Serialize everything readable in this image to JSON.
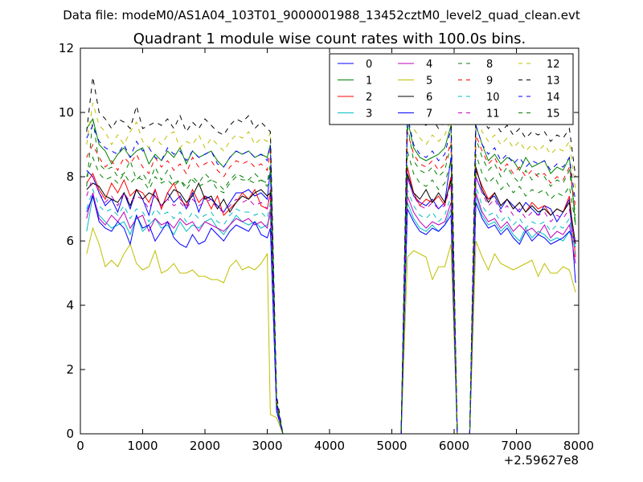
{
  "header": {
    "suptitle": "Data file: modeM0/AS1A04_103T01_9000001988_13452cztM0_level2_quad_clean.evt"
  },
  "chart_data": {
    "type": "line",
    "title": "Quadrant 1 module wise count rates with 100.0s bins.",
    "xlabel": "",
    "ylabel": "",
    "xlim": [
      0,
      8000
    ],
    "ylim": [
      0,
      12
    ],
    "x_offset_label": "+2.59627e8",
    "xticks": [
      "0",
      "1000",
      "2000",
      "3000",
      "4000",
      "5000",
      "6000",
      "7000",
      "8000"
    ],
    "yticks": [
      "0",
      "2",
      "4",
      "6",
      "8",
      "10",
      "12"
    ],
    "grid": false,
    "legend_position": "top-right",
    "x": [
      100,
      200,
      300,
      400,
      500,
      600,
      700,
      800,
      900,
      1000,
      1100,
      1200,
      1300,
      1400,
      1500,
      1600,
      1700,
      1800,
      1900,
      2000,
      2100,
      2200,
      2300,
      2400,
      2500,
      2600,
      2700,
      2800,
      2900,
      3000,
      3050,
      3150,
      3250,
      3350,
      4000,
      5000,
      5150,
      5250,
      5350,
      5450,
      5550,
      5650,
      5750,
      5850,
      5950,
      6050,
      6150,
      6250,
      6350,
      6450,
      6550,
      6650,
      6750,
      6850,
      6950,
      7050,
      7150,
      7250,
      7350,
      7450,
      7550,
      7650,
      7750,
      7850,
      7950
    ],
    "series": [
      {
        "name": "0",
        "color": "#0000ff",
        "dash": "solid",
        "values": [
          8.2,
          8.0,
          7.5,
          7.1,
          7.3,
          6.9,
          7.5,
          7.0,
          7.6,
          7.3,
          6.8,
          7.6,
          7.0,
          7.5,
          7.2,
          7.4,
          7.0,
          7.5,
          6.9,
          7.4,
          7.3,
          7.1,
          6.9,
          7.2,
          7.5,
          7.5,
          7.6,
          7.4,
          7.5,
          7.3,
          8.2,
          0.9,
          0.0,
          0.0,
          0.0,
          0.0,
          0.0,
          8.0,
          7.4,
          7.2,
          7.1,
          7.3,
          7.0,
          7.2,
          8.6,
          0.0,
          0.0,
          0.0,
          8.0,
          7.5,
          7.3,
          7.4,
          7.0,
          7.3,
          7.1,
          6.9,
          7.2,
          7.0,
          6.8,
          7.1,
          7.0,
          6.6,
          6.9,
          7.3,
          4.7
        ]
      },
      {
        "name": "1",
        "color": "#008000",
        "dash": "solid",
        "values": [
          9.5,
          9.8,
          9.0,
          8.8,
          8.4,
          8.7,
          8.9,
          8.6,
          8.8,
          8.9,
          8.4,
          8.7,
          8.5,
          8.8,
          8.6,
          8.9,
          8.4,
          8.8,
          8.6,
          8.7,
          8.8,
          8.5,
          8.3,
          8.6,
          8.8,
          8.7,
          8.8,
          8.6,
          8.7,
          8.6,
          9.0,
          1.0,
          0.0,
          0.0,
          0.0,
          0.0,
          0.0,
          9.8,
          8.9,
          8.6,
          8.5,
          8.6,
          8.7,
          8.9,
          9.6,
          0.0,
          0.0,
          0.0,
          9.6,
          9.0,
          8.5,
          8.7,
          8.4,
          8.6,
          8.5,
          8.2,
          8.6,
          8.3,
          8.4,
          8.5,
          8.1,
          8.3,
          8.2,
          8.6,
          6.5
        ]
      },
      {
        "name": "2",
        "color": "#ff0000",
        "dash": "solid",
        "values": [
          7.8,
          8.1,
          7.6,
          7.3,
          7.8,
          7.5,
          7.9,
          7.4,
          7.6,
          7.5,
          7.2,
          7.6,
          7.0,
          7.5,
          7.8,
          7.3,
          7.1,
          7.6,
          7.2,
          7.4,
          7.0,
          7.4,
          6.8,
          7.0,
          7.2,
          7.5,
          7.3,
          7.6,
          7.1,
          7.0,
          7.5,
          0.9,
          0.0,
          0.0,
          0.0,
          0.0,
          0.0,
          8.3,
          7.5,
          7.1,
          7.3,
          7.2,
          7.4,
          7.1,
          8.0,
          0.0,
          0.0,
          0.0,
          8.2,
          7.7,
          7.3,
          7.5,
          7.1,
          7.3,
          7.0,
          7.2,
          6.9,
          7.2,
          7.0,
          7.1,
          6.8,
          7.0,
          6.9,
          7.4,
          5.5
        ]
      },
      {
        "name": "3",
        "color": "#00bfbf",
        "dash": "solid",
        "values": [
          6.3,
          7.4,
          6.8,
          6.6,
          6.4,
          6.5,
          6.6,
          6.2,
          6.8,
          6.3,
          6.5,
          6.7,
          6.4,
          6.5,
          6.2,
          6.6,
          6.3,
          6.5,
          6.4,
          6.6,
          6.7,
          6.4,
          6.2,
          6.5,
          6.8,
          6.6,
          6.5,
          6.6,
          6.4,
          6.5,
          6.8,
          0.8,
          0.0,
          0.0,
          0.0,
          0.0,
          0.0,
          7.2,
          6.7,
          6.4,
          6.3,
          6.5,
          6.3,
          6.5,
          7.0,
          0.0,
          0.0,
          0.0,
          7.4,
          6.8,
          6.5,
          6.6,
          6.3,
          6.5,
          6.2,
          6.0,
          6.4,
          6.1,
          6.3,
          6.2,
          6.0,
          6.1,
          6.0,
          6.3,
          5.8
        ]
      },
      {
        "name": "4",
        "color": "#bf00bf",
        "dash": "solid",
        "values": [
          6.7,
          7.5,
          6.7,
          6.5,
          6.8,
          6.6,
          6.9,
          6.4,
          6.7,
          6.8,
          6.3,
          6.7,
          6.5,
          6.6,
          6.4,
          6.7,
          6.5,
          6.6,
          6.3,
          6.6,
          6.5,
          6.4,
          6.3,
          6.5,
          6.7,
          6.6,
          6.7,
          6.5,
          6.6,
          6.4,
          7.0,
          0.8,
          0.0,
          0.0,
          0.0,
          0.0,
          0.0,
          7.4,
          6.9,
          6.6,
          6.4,
          6.6,
          6.5,
          6.6,
          7.2,
          0.0,
          0.0,
          0.0,
          7.5,
          6.9,
          6.6,
          6.7,
          6.4,
          6.6,
          6.3,
          6.5,
          6.3,
          6.4,
          6.2,
          6.5,
          6.1,
          6.3,
          6.2,
          6.5,
          5.3
        ]
      },
      {
        "name": "5",
        "color": "#bfbf00",
        "dash": "solid",
        "values": [
          5.6,
          6.4,
          5.9,
          5.2,
          5.4,
          5.2,
          5.6,
          5.9,
          5.3,
          5.1,
          5.2,
          5.7,
          5.0,
          5.1,
          5.3,
          5.0,
          5.0,
          5.1,
          4.9,
          4.9,
          4.8,
          4.8,
          4.7,
          5.2,
          5.4,
          5.1,
          5.2,
          5.1,
          5.3,
          5.6,
          0.6,
          0.5,
          0.0,
          0.0,
          0.0,
          0.0,
          0.0,
          5.5,
          5.7,
          5.6,
          5.5,
          4.8,
          5.2,
          5.2,
          5.9,
          0.0,
          0.0,
          0.0,
          6.0,
          5.5,
          5.1,
          5.6,
          5.3,
          5.2,
          5.1,
          5.2,
          5.3,
          5.4,
          4.9,
          5.3,
          5.0,
          5.0,
          5.2,
          5.1,
          4.4
        ]
      },
      {
        "name": "6",
        "color": "#000000",
        "dash": "solid",
        "values": [
          7.6,
          7.8,
          7.7,
          7.4,
          7.3,
          7.2,
          7.5,
          7.1,
          7.6,
          7.3,
          7.5,
          7.4,
          7.1,
          7.3,
          7.6,
          7.5,
          7.2,
          7.4,
          7.8,
          7.3,
          7.4,
          7.0,
          7.3,
          6.9,
          7.2,
          7.4,
          7.3,
          7.5,
          7.6,
          7.4,
          7.5,
          0.9,
          0.0,
          0.0,
          0.0,
          0.0,
          0.0,
          8.1,
          7.5,
          7.3,
          7.6,
          7.2,
          7.5,
          7.2,
          7.9,
          0.0,
          0.0,
          0.0,
          8.3,
          7.6,
          7.2,
          7.5,
          7.1,
          7.3,
          7.0,
          7.2,
          6.9,
          7.1,
          6.9,
          7.0,
          6.8,
          7.0,
          6.9,
          7.2,
          5.9
        ]
      },
      {
        "name": "7",
        "color": "#0000ff",
        "dash": "solid",
        "values": [
          6.9,
          7.4,
          6.6,
          6.4,
          6.3,
          6.6,
          6.4,
          5.9,
          6.8,
          6.4,
          6.5,
          6.0,
          6.3,
          6.6,
          6.1,
          5.9,
          5.8,
          6.2,
          5.9,
          6.0,
          6.4,
          6.2,
          6.0,
          6.3,
          6.5,
          6.4,
          6.3,
          6.6,
          6.2,
          6.1,
          6.4,
          0.7,
          0.0,
          0.0,
          0.0,
          0.0,
          0.0,
          7.0,
          6.6,
          6.3,
          6.2,
          6.4,
          6.3,
          6.5,
          6.8,
          0.0,
          0.0,
          0.0,
          7.2,
          6.7,
          6.4,
          6.5,
          6.2,
          6.4,
          6.1,
          5.9,
          6.3,
          6.0,
          6.2,
          6.1,
          5.9,
          6.0,
          6.1,
          6.3,
          6.0
        ]
      },
      {
        "name": "8",
        "color": "#008000",
        "dash": "dashed",
        "values": [
          7.7,
          9.8,
          8.4,
          8.2,
          8.3,
          8.0,
          8.1,
          8.5,
          7.9,
          8.1,
          7.8,
          8.3,
          7.9,
          8.2,
          7.8,
          7.9,
          7.7,
          8.0,
          7.8,
          8.1,
          7.9,
          7.8,
          7.6,
          7.9,
          8.1,
          8.0,
          7.9,
          8.1,
          7.9,
          7.8,
          8.4,
          0.9,
          0.0,
          0.0,
          0.0,
          0.0,
          0.0,
          9.6,
          8.5,
          8.2,
          8.1,
          8.3,
          8.0,
          8.2,
          9.0,
          0.0,
          0.0,
          0.0,
          9.2,
          8.6,
          8.2,
          8.4,
          8.0,
          8.3,
          8.0,
          7.8,
          8.2,
          7.9,
          8.1,
          8.0,
          7.7,
          7.9,
          7.8,
          8.2,
          6.8
        ]
      },
      {
        "name": "9",
        "color": "#ff0000",
        "dash": "dashed",
        "values": [
          8.6,
          9.0,
          8.6,
          8.3,
          8.5,
          8.2,
          8.6,
          8.4,
          8.7,
          8.3,
          8.1,
          8.6,
          8.3,
          8.5,
          8.2,
          8.4,
          8.1,
          8.6,
          8.3,
          8.4,
          8.5,
          8.2,
          8.0,
          8.3,
          8.5,
          8.4,
          8.5,
          8.3,
          8.4,
          8.2,
          8.8,
          1.0,
          0.0,
          0.0,
          0.0,
          0.0,
          0.0,
          9.4,
          8.7,
          8.4,
          8.3,
          8.5,
          8.2,
          8.4,
          9.1,
          0.0,
          0.0,
          0.0,
          9.3,
          8.8,
          8.4,
          8.6,
          8.2,
          8.4,
          8.1,
          8.3,
          8.0,
          8.2,
          8.0,
          8.1,
          7.8,
          8.0,
          7.9,
          8.3,
          7.0
        ]
      },
      {
        "name": "10",
        "color": "#00bfbf",
        "dash": "dashed",
        "values": [
          7.0,
          7.6,
          7.1,
          6.9,
          7.0,
          6.8,
          7.1,
          6.7,
          7.0,
          6.9,
          6.6,
          7.0,
          6.8,
          6.9,
          6.7,
          6.9,
          6.6,
          6.9,
          6.7,
          6.8,
          6.9,
          6.6,
          6.5,
          6.8,
          7.0,
          6.9,
          6.9,
          6.8,
          6.9,
          6.7,
          7.2,
          0.8,
          0.0,
          0.0,
          0.0,
          0.0,
          0.0,
          7.6,
          7.1,
          6.8,
          6.7,
          6.9,
          6.6,
          6.8,
          7.4,
          0.0,
          0.0,
          0.0,
          7.7,
          7.1,
          6.8,
          6.9,
          6.6,
          6.8,
          6.5,
          6.7,
          6.4,
          6.6,
          6.5,
          6.6,
          6.3,
          6.5,
          6.4,
          6.7,
          5.6
        ]
      },
      {
        "name": "11",
        "color": "#bf00bf",
        "dash": "dashed",
        "values": [
          7.4,
          8.0,
          7.5,
          7.2,
          7.4,
          7.1,
          7.5,
          7.2,
          7.4,
          7.3,
          7.0,
          7.4,
          7.1,
          7.3,
          7.1,
          7.2,
          7.0,
          7.3,
          7.1,
          7.2,
          7.3,
          7.0,
          6.9,
          7.1,
          7.3,
          7.2,
          7.3,
          7.1,
          7.2,
          7.0,
          7.6,
          0.9,
          0.0,
          0.0,
          0.0,
          0.0,
          0.0,
          8.0,
          7.4,
          7.1,
          7.0,
          7.2,
          7.0,
          7.1,
          7.8,
          0.0,
          0.0,
          0.0,
          8.0,
          7.5,
          7.1,
          7.3,
          6.9,
          7.1,
          6.8,
          7.0,
          6.7,
          6.9,
          6.8,
          6.9,
          6.6,
          6.8,
          6.7,
          7.0,
          5.8
        ]
      },
      {
        "name": "12",
        "color": "#bfbf00",
        "dash": "dashed",
        "values": [
          9.0,
          10.3,
          9.6,
          9.4,
          9.0,
          9.3,
          9.0,
          9.4,
          9.7,
          9.1,
          8.9,
          9.2,
          9.0,
          9.3,
          9.4,
          8.9,
          9.1,
          9.0,
          9.3,
          8.9,
          9.2,
          9.0,
          8.8,
          9.1,
          9.3,
          9.2,
          9.4,
          9.0,
          9.2,
          9.1,
          9.4,
          1.1,
          0.0,
          0.0,
          0.0,
          0.0,
          0.0,
          10.1,
          9.5,
          9.2,
          9.0,
          9.3,
          9.1,
          9.3,
          9.8,
          0.0,
          0.0,
          0.0,
          10.0,
          9.4,
          9.1,
          9.3,
          9.0,
          9.2,
          8.9,
          9.1,
          8.8,
          9.0,
          8.8,
          9.0,
          8.7,
          8.9,
          8.8,
          9.1,
          7.6
        ]
      },
      {
        "name": "13",
        "color": "#000000",
        "dash": "dashed",
        "values": [
          9.4,
          11.1,
          10.0,
          9.8,
          9.5,
          9.8,
          9.7,
          9.5,
          10.2,
          9.5,
          9.6,
          9.7,
          9.6,
          9.8,
          9.5,
          9.9,
          9.4,
          9.7,
          9.5,
          9.8,
          9.6,
          9.4,
          9.3,
          9.6,
          9.8,
          9.7,
          9.9,
          9.5,
          9.7,
          9.5,
          9.4,
          1.2,
          0.0,
          0.0,
          0.0,
          0.0,
          0.0,
          10.3,
          10.0,
          9.7,
          9.6,
          9.8,
          9.5,
          9.7,
          10.0,
          0.0,
          0.0,
          0.0,
          10.1,
          9.8,
          9.5,
          9.7,
          9.4,
          9.6,
          9.3,
          9.5,
          9.2,
          9.4,
          9.3,
          9.4,
          9.1,
          9.3,
          9.2,
          9.5,
          8.0
        ]
      },
      {
        "name": "14",
        "color": "#0000ff",
        "dash": "dashed",
        "values": [
          9.2,
          9.6,
          9.1,
          8.9,
          8.8,
          8.7,
          9.0,
          8.6,
          9.1,
          8.8,
          8.9,
          8.6,
          8.5,
          8.9,
          8.7,
          8.8,
          8.5,
          8.8,
          8.6,
          8.7,
          8.8,
          8.4,
          8.3,
          8.6,
          8.8,
          8.7,
          8.8,
          8.6,
          8.7,
          8.5,
          9.0,
          1.0,
          0.0,
          0.0,
          0.0,
          0.0,
          0.0,
          9.9,
          9.0,
          8.7,
          8.6,
          8.8,
          8.5,
          8.7,
          9.5,
          0.0,
          0.0,
          0.0,
          9.6,
          9.0,
          8.7,
          8.9,
          8.5,
          8.7,
          8.4,
          8.6,
          8.3,
          8.5,
          8.4,
          8.5,
          8.2,
          8.4,
          8.3,
          8.6,
          7.2
        ]
      },
      {
        "name": "15",
        "color": "#008000",
        "dash": "dashed",
        "values": [
          8.0,
          8.6,
          8.1,
          7.9,
          8.0,
          7.8,
          8.1,
          7.8,
          8.0,
          7.9,
          7.6,
          8.0,
          7.8,
          7.9,
          7.7,
          7.9,
          7.6,
          7.9,
          7.7,
          7.8,
          7.9,
          7.6,
          7.5,
          7.8,
          8.0,
          7.9,
          7.9,
          7.8,
          7.9,
          7.7,
          8.2,
          0.9,
          0.0,
          0.0,
          0.0,
          0.0,
          0.0,
          8.8,
          8.1,
          7.8,
          7.7,
          7.9,
          7.6,
          7.8,
          8.5,
          0.0,
          0.0,
          0.0,
          8.7,
          8.1,
          7.8,
          8.0,
          7.6,
          7.8,
          7.5,
          7.7,
          7.4,
          7.6,
          7.5,
          7.6,
          7.3,
          7.5,
          7.4,
          7.7,
          6.5
        ]
      }
    ]
  }
}
